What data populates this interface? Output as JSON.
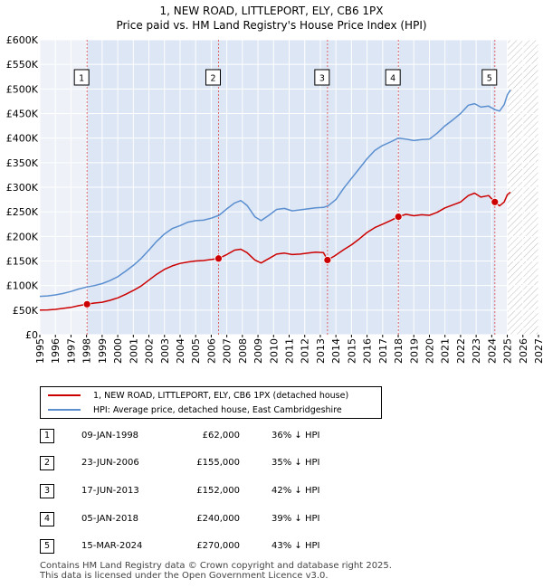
{
  "title_line1": "1, NEW ROAD, LITTLEPORT, ELY, CB6 1PX",
  "title_line2": "Price paid vs. HM Land Registry's House Price Index (HPI)",
  "chart_data": {
    "type": "line",
    "x_range": [
      1995,
      2027
    ],
    "y_range": [
      0,
      600000
    ],
    "x_ticks": [
      "1995",
      "1996",
      "1997",
      "1998",
      "1999",
      "2000",
      "2001",
      "2002",
      "2003",
      "2004",
      "2005",
      "2006",
      "2007",
      "2008",
      "2009",
      "2010",
      "2011",
      "2012",
      "2013",
      "2014",
      "2015",
      "2016",
      "2017",
      "2018",
      "2019",
      "2020",
      "2021",
      "2022",
      "2023",
      "2024",
      "2025",
      "2026",
      "2027"
    ],
    "y_ticks": [
      {
        "value": 0,
        "label": "£0"
      },
      {
        "value": 50000,
        "label": "£50K"
      },
      {
        "value": 100000,
        "label": "£100K"
      },
      {
        "value": 150000,
        "label": "£150K"
      },
      {
        "value": 200000,
        "label": "£200K"
      },
      {
        "value": 250000,
        "label": "£250K"
      },
      {
        "value": 300000,
        "label": "£300K"
      },
      {
        "value": 350000,
        "label": "£350K"
      },
      {
        "value": 400000,
        "label": "£400K"
      },
      {
        "value": 450000,
        "label": "£450K"
      },
      {
        "value": 500000,
        "label": "£500K"
      },
      {
        "value": 550000,
        "label": "£550K"
      },
      {
        "value": 600000,
        "label": "£600K"
      }
    ],
    "grid": true,
    "future_hatch_from": 2025.0,
    "series": [
      {
        "name": "1, NEW ROAD, LITTLEPORT, ELY, CB6 1PX (detached house)",
        "color": "#cc0000",
        "points": [
          [
            1995.0,
            50000
          ],
          [
            1995.5,
            50500
          ],
          [
            1996.0,
            51500
          ],
          [
            1996.5,
            53500
          ],
          [
            1997.0,
            55500
          ],
          [
            1997.5,
            59000
          ],
          [
            1998.03,
            62000
          ],
          [
            1998.5,
            64500
          ],
          [
            1999.0,
            66000
          ],
          [
            1999.5,
            70000
          ],
          [
            2000.0,
            75000
          ],
          [
            2000.5,
            82000
          ],
          [
            2001.0,
            90000
          ],
          [
            2001.5,
            99000
          ],
          [
            2002.0,
            111000
          ],
          [
            2002.5,
            123000
          ],
          [
            2003.0,
            133000
          ],
          [
            2003.5,
            140000
          ],
          [
            2004.0,
            145000
          ],
          [
            2004.5,
            148000
          ],
          [
            2005.0,
            150000
          ],
          [
            2005.5,
            151000
          ],
          [
            2006.0,
            153000
          ],
          [
            2006.47,
            155000
          ],
          [
            2007.0,
            163000
          ],
          [
            2007.5,
            172000
          ],
          [
            2007.9,
            174000
          ],
          [
            2008.3,
            167000
          ],
          [
            2008.8,
            152000
          ],
          [
            2009.2,
            146000
          ],
          [
            2009.7,
            155000
          ],
          [
            2010.2,
            164000
          ],
          [
            2010.7,
            166000
          ],
          [
            2011.2,
            163000
          ],
          [
            2011.7,
            164000
          ],
          [
            2012.2,
            166000
          ],
          [
            2012.7,
            168000
          ],
          [
            2013.2,
            167000
          ],
          [
            2013.46,
            152000
          ],
          [
            2013.9,
            160000
          ],
          [
            2014.5,
            173000
          ],
          [
            2015.0,
            183000
          ],
          [
            2015.5,
            195000
          ],
          [
            2016.0,
            208000
          ],
          [
            2016.5,
            218000
          ],
          [
            2017.0,
            225000
          ],
          [
            2017.5,
            232000
          ],
          [
            2018.01,
            240000
          ],
          [
            2018.5,
            245000
          ],
          [
            2019.0,
            242000
          ],
          [
            2019.5,
            244000
          ],
          [
            2020.0,
            243000
          ],
          [
            2020.5,
            249000
          ],
          [
            2021.0,
            258000
          ],
          [
            2021.5,
            264000
          ],
          [
            2022.0,
            270000
          ],
          [
            2022.5,
            283000
          ],
          [
            2022.9,
            288000
          ],
          [
            2023.3,
            280000
          ],
          [
            2023.8,
            283000
          ],
          [
            2024.2,
            270000
          ],
          [
            2024.5,
            262000
          ],
          [
            2024.8,
            270000
          ],
          [
            2025.0,
            285000
          ],
          [
            2025.2,
            290000
          ]
        ]
      },
      {
        "name": "HPI: Average price, detached house, East Cambridgeshire",
        "color": "#5b8fd0",
        "points": [
          [
            1995.0,
            78000
          ],
          [
            1995.5,
            79000
          ],
          [
            1996.0,
            81000
          ],
          [
            1996.5,
            84000
          ],
          [
            1997.0,
            88000
          ],
          [
            1997.5,
            93000
          ],
          [
            1998.0,
            97000
          ],
          [
            1998.5,
            100000
          ],
          [
            1999.0,
            104000
          ],
          [
            1999.5,
            110000
          ],
          [
            2000.0,
            118000
          ],
          [
            2000.5,
            129000
          ],
          [
            2001.0,
            141000
          ],
          [
            2001.5,
            155000
          ],
          [
            2002.0,
            172000
          ],
          [
            2002.5,
            190000
          ],
          [
            2003.0,
            205000
          ],
          [
            2003.5,
            216000
          ],
          [
            2004.0,
            222000
          ],
          [
            2004.5,
            229000
          ],
          [
            2005.0,
            232000
          ],
          [
            2005.5,
            233000
          ],
          [
            2006.0,
            237000
          ],
          [
            2006.5,
            243000
          ],
          [
            2007.0,
            256000
          ],
          [
            2007.5,
            268000
          ],
          [
            2007.9,
            273000
          ],
          [
            2008.3,
            263000
          ],
          [
            2008.8,
            240000
          ],
          [
            2009.2,
            232000
          ],
          [
            2009.7,
            243000
          ],
          [
            2010.2,
            255000
          ],
          [
            2010.7,
            257000
          ],
          [
            2011.2,
            252000
          ],
          [
            2011.7,
            254000
          ],
          [
            2012.2,
            256000
          ],
          [
            2012.7,
            258000
          ],
          [
            2013.2,
            259000
          ],
          [
            2013.5,
            262000
          ],
          [
            2014.0,
            275000
          ],
          [
            2014.5,
            298000
          ],
          [
            2015.0,
            318000
          ],
          [
            2015.5,
            338000
          ],
          [
            2016.0,
            358000
          ],
          [
            2016.5,
            375000
          ],
          [
            2017.0,
            385000
          ],
          [
            2017.5,
            392000
          ],
          [
            2018.0,
            400000
          ],
          [
            2018.5,
            398000
          ],
          [
            2019.0,
            395000
          ],
          [
            2019.5,
            397000
          ],
          [
            2020.0,
            398000
          ],
          [
            2020.5,
            410000
          ],
          [
            2021.0,
            425000
          ],
          [
            2021.5,
            437000
          ],
          [
            2022.0,
            450000
          ],
          [
            2022.5,
            467000
          ],
          [
            2022.9,
            470000
          ],
          [
            2023.3,
            463000
          ],
          [
            2023.8,
            465000
          ],
          [
            2024.2,
            458000
          ],
          [
            2024.5,
            455000
          ],
          [
            2024.8,
            468000
          ],
          [
            2025.0,
            488000
          ],
          [
            2025.2,
            498000
          ]
        ]
      }
    ],
    "sales": [
      {
        "id": "1",
        "x": 1998.03,
        "price": 62000
      },
      {
        "id": "2",
        "x": 2006.47,
        "price": 155000
      },
      {
        "id": "3",
        "x": 2013.46,
        "price": 152000
      },
      {
        "id": "4",
        "x": 2018.01,
        "price": 240000
      },
      {
        "id": "5",
        "x": 2024.2,
        "price": 270000
      }
    ]
  },
  "legend": {
    "items": [
      {
        "label": "1, NEW ROAD, LITTLEPORT, ELY, CB6 1PX (detached house)",
        "color": "#cc0000"
      },
      {
        "label": "HPI: Average price, detached house, East Cambridgeshire",
        "color": "#5b8fd0"
      }
    ]
  },
  "sales_table": [
    {
      "num": "1",
      "date": "09-JAN-1998",
      "price": "£62,000",
      "hpi": "36% ↓ HPI"
    },
    {
      "num": "2",
      "date": "23-JUN-2006",
      "price": "£155,000",
      "hpi": "35% ↓ HPI"
    },
    {
      "num": "3",
      "date": "17-JUN-2013",
      "price": "£152,000",
      "hpi": "42% ↓ HPI"
    },
    {
      "num": "4",
      "date": "05-JAN-2018",
      "price": "£240,000",
      "hpi": "39% ↓ HPI"
    },
    {
      "num": "5",
      "date": "15-MAR-2024",
      "price": "£270,000",
      "hpi": "43% ↓ HPI"
    }
  ],
  "footer": {
    "line1": "Contains HM Land Registry data © Crown copyright and database right 2025.",
    "line2": "This data is licensed under the Open Government Licence v3.0."
  }
}
